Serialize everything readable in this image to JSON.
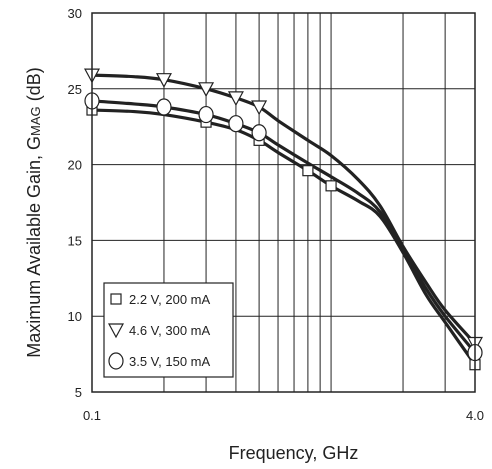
{
  "chart_data": {
    "type": "line",
    "xlabel": "Frequency, GHz",
    "ylabel_parts": [
      "Maximum Available Gain, G",
      "MAG",
      " (dB)"
    ],
    "xscale": "log",
    "xlim": [
      0.1,
      4.0
    ],
    "ylim": [
      5,
      30
    ],
    "xtick_labels": [
      "0.1",
      "4.0"
    ],
    "yticks": [
      5,
      10,
      15,
      20,
      25,
      30
    ],
    "grid": true,
    "legend_position": "lower-left",
    "series": [
      {
        "name": "2.2 V, 200 mA",
        "marker": "square",
        "x": [
          0.1,
          0.15,
          0.2,
          0.3,
          0.4,
          0.5,
          0.6,
          0.8,
          1.0,
          1.3,
          1.6,
          2.0,
          2.5,
          3.0,
          4.0
        ],
        "y": [
          23.6,
          23.5,
          23.3,
          22.8,
          22.3,
          21.6,
          20.8,
          19.6,
          18.6,
          17.6,
          16.6,
          14.2,
          11.4,
          9.6,
          6.8
        ],
        "markers_x": [
          0.1,
          0.3,
          0.5,
          0.8,
          1.0,
          4.0
        ],
        "markers_y": [
          23.6,
          22.8,
          21.6,
          19.6,
          18.6,
          6.8
        ]
      },
      {
        "name": "4.6 V, 300 mA",
        "marker": "triangle-down",
        "x": [
          0.1,
          0.15,
          0.2,
          0.3,
          0.4,
          0.5,
          0.6,
          0.8,
          1.0,
          1.3,
          1.6,
          2.0,
          2.5,
          3.0,
          4.0
        ],
        "y": [
          25.9,
          25.8,
          25.6,
          25.0,
          24.4,
          23.8,
          22.9,
          21.6,
          20.6,
          19.0,
          17.3,
          14.6,
          12.2,
          10.4,
          8.2
        ],
        "markers_x": [
          0.1,
          0.2,
          0.3,
          0.4,
          0.5,
          4.0
        ],
        "markers_y": [
          25.9,
          25.6,
          25.0,
          24.4,
          23.8,
          8.2
        ]
      },
      {
        "name": "3.5 V, 150 mA",
        "marker": "circle",
        "x": [
          0.1,
          0.15,
          0.2,
          0.3,
          0.4,
          0.5,
          0.6,
          0.8,
          1.0,
          1.3,
          1.6,
          2.0,
          2.5,
          3.0,
          4.0
        ],
        "y": [
          24.2,
          24.0,
          23.8,
          23.3,
          22.7,
          22.1,
          21.3,
          20.1,
          19.2,
          18.1,
          16.9,
          14.4,
          11.8,
          10.0,
          7.6
        ],
        "markers_x": [
          0.1,
          0.2,
          0.3,
          0.4,
          0.5,
          4.0
        ],
        "markers_y": [
          24.2,
          23.8,
          23.3,
          22.7,
          22.1,
          7.6
        ]
      }
    ],
    "colors": {
      "line": "#222222",
      "grid": "#222222",
      "marker_fill": "#ffffff"
    }
  }
}
